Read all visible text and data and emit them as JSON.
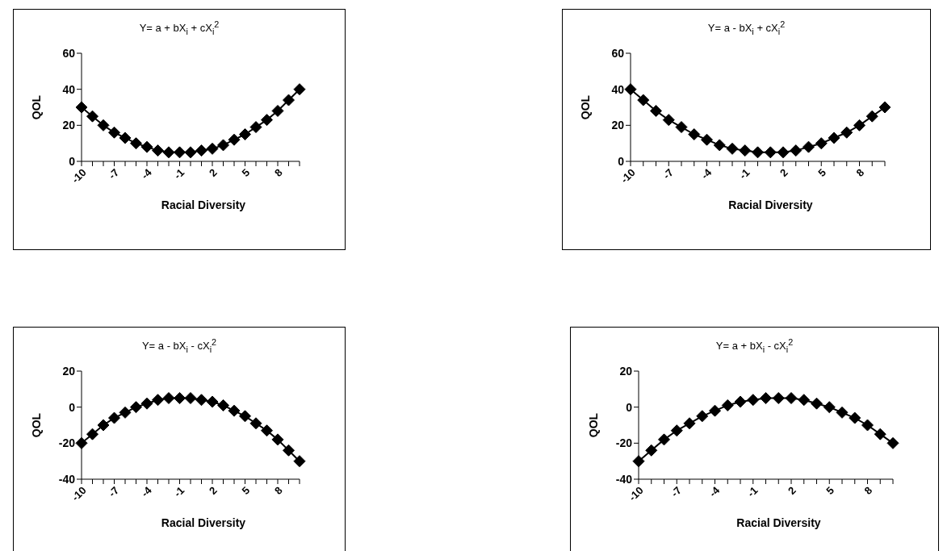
{
  "chart_data": [
    {
      "type": "line",
      "title": "Y= a + bX$_{i}$ + cX$_{i}$$^{2}$",
      "xlabel": "Racial Diversity",
      "ylabel": "QOL",
      "categories": [
        "-10",
        null,
        null,
        "-7",
        null,
        null,
        "-4",
        null,
        null,
        "-1",
        null,
        null,
        "2",
        null,
        null,
        "5",
        null,
        null,
        "8",
        null,
        null
      ],
      "series": [
        {
          "color": "#000000",
          "values": [
            30,
            25,
            20,
            16,
            13,
            10,
            8,
            6,
            5,
            5,
            5,
            6,
            7,
            9,
            12,
            15,
            19,
            23,
            28,
            34,
            40
          ]
        }
      ],
      "ylim": [
        0,
        60
      ],
      "yticks": [
        0,
        20,
        40,
        60
      ],
      "grid": false,
      "legend": false,
      "marker": "diamond",
      "line_style": "solid"
    },
    {
      "type": "line",
      "title": "Y= a - bX$_{i}$ + cX$_{i}$$^{2}$",
      "xlabel": "Racial Diversity",
      "ylabel": "QOL",
      "categories": [
        "-10",
        null,
        null,
        "-7",
        null,
        null,
        "-4",
        null,
        null,
        "-1",
        null,
        null,
        "2",
        null,
        null,
        "5",
        null,
        null,
        "8",
        null,
        null
      ],
      "series": [
        {
          "color": "#000000",
          "values": [
            40,
            34,
            28,
            23,
            19,
            15,
            12,
            9,
            7,
            6,
            5,
            5,
            5,
            6,
            8,
            10,
            13,
            16,
            20,
            25,
            30
          ]
        }
      ],
      "ylim": [
        0,
        60
      ],
      "yticks": [
        0,
        20,
        40,
        60
      ],
      "grid": false,
      "legend": false,
      "marker": "diamond",
      "line_style": "solid"
    },
    {
      "type": "line",
      "title": "Y= a - bX$_{i}$ - cX$_{i}$$^{2}$",
      "xlabel": "Racial Diversity",
      "ylabel": "QOL",
      "categories": [
        "-10",
        null,
        null,
        "-7",
        null,
        null,
        "-4",
        null,
        null,
        "-1",
        null,
        null,
        "2",
        null,
        null,
        "5",
        null,
        null,
        "8",
        null,
        null
      ],
      "series": [
        {
          "color": "#000000",
          "values": [
            -20,
            -15,
            -10,
            -6,
            -3,
            0,
            2,
            4,
            5,
            5,
            5,
            4,
            3,
            1,
            -2,
            -5,
            -9,
            -13,
            -18,
            -24,
            -30
          ]
        }
      ],
      "ylim": [
        -40,
        20
      ],
      "yticks": [
        -40,
        -20,
        0,
        20
      ],
      "grid": false,
      "legend": false,
      "marker": "diamond",
      "line_style": "solid"
    },
    {
      "type": "line",
      "title": "Y= a + bX$_{i}$ - cX$_{i}$$^{2}$",
      "xlabel": "Racial Diversity",
      "ylabel": "QOL",
      "categories": [
        "-10",
        null,
        null,
        "-7",
        null,
        null,
        "-4",
        null,
        null,
        "-1",
        null,
        null,
        "2",
        null,
        null,
        "5",
        null,
        null,
        "8",
        null,
        null
      ],
      "series": [
        {
          "color": "#000000",
          "values": [
            -30,
            -24,
            -18,
            -13,
            -9,
            -5,
            -2,
            1,
            3,
            4,
            5,
            5,
            5,
            4,
            2,
            0,
            -3,
            -6,
            -10,
            -15,
            -20
          ]
        }
      ],
      "ylim": [
        -40,
        20
      ],
      "yticks": [
        -40,
        -20,
        0,
        20
      ],
      "grid": false,
      "legend": false,
      "marker": "diamond",
      "line_style": "solid"
    }
  ]
}
